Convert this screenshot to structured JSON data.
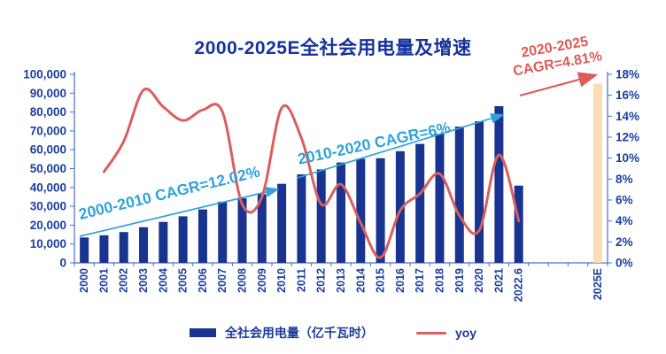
{
  "title": "2000-2025E全社会用电量及增速",
  "annotations": {
    "cagr_2000_2010": "2000-2010 CAGR=12.02%",
    "cagr_2010_2020": "2010-2020 CAGR=6%",
    "cagr_2020_2025_line1": "2020-2025",
    "cagr_2020_2025_line2": "CAGR=4.81%"
  },
  "legend": {
    "bar_label": "全社会用电量（亿千瓦时）",
    "line_label": "yoy"
  },
  "colors": {
    "bar": "#183390",
    "forecast_bar": "#FADCB2",
    "yoy_line": "#DB5E5E",
    "cagr_blue": "#2EA3DC",
    "cagr_red": "#DC5B5B",
    "axis_line": "#4472C4",
    "axis_text": "#1B3FA0",
    "title_text": "#16339B"
  },
  "chart_data": {
    "type": "bar+line",
    "title": "2000-2025E全社会用电量及增速",
    "categories": [
      "2000",
      "2001",
      "2002",
      "2003",
      "2004",
      "2005",
      "2006",
      "2007",
      "2008",
      "2009",
      "2010",
      "2011",
      "2012",
      "2013",
      "2014",
      "2015",
      "2016",
      "2017",
      "2018",
      "2019",
      "2020",
      "2021",
      "2022.6"
    ],
    "bar_series": {
      "name": "全社会用电量（亿千瓦时）",
      "unit": "亿千瓦时",
      "values": [
        13466,
        14633,
        16331,
        18910,
        21735,
        24689,
        28344,
        32458,
        34268,
        36430,
        41923,
        46928,
        49591,
        53223,
        55233,
        55500,
        59198,
        63077,
        68449,
        72255,
        75110,
        83128,
        40977
      ]
    },
    "forecast_bar": {
      "category": "2025E",
      "value": 95000
    },
    "empty_slots_before_forecast": 3,
    "line_series": {
      "name": "yoy",
      "unit": "%",
      "start_category": "2001",
      "values": [
        8.7,
        11.6,
        16.5,
        14.9,
        13.6,
        14.6,
        14.4,
        5.6,
        6.3,
        14.8,
        11.9,
        5.6,
        7.5,
        3.8,
        0.5,
        5.0,
        6.6,
        8.5,
        4.5,
        3.1,
        10.3,
        4.0
      ]
    },
    "left_axis": {
      "min": 0,
      "max": 100000,
      "step": 10000,
      "labels": [
        "100,000",
        "90,000",
        "80,000",
        "70,000",
        "60,000",
        "50,000",
        "40,000",
        "30,000",
        "20,000",
        "10,000",
        "0"
      ]
    },
    "right_axis": {
      "min": 0,
      "max": 18,
      "step": 2,
      "labels": [
        "18%",
        "16%",
        "14%",
        "12%",
        "10%",
        "8%",
        "6%",
        "4%",
        "2%",
        "0%"
      ]
    },
    "grid": false,
    "legend_position": "bottom"
  }
}
